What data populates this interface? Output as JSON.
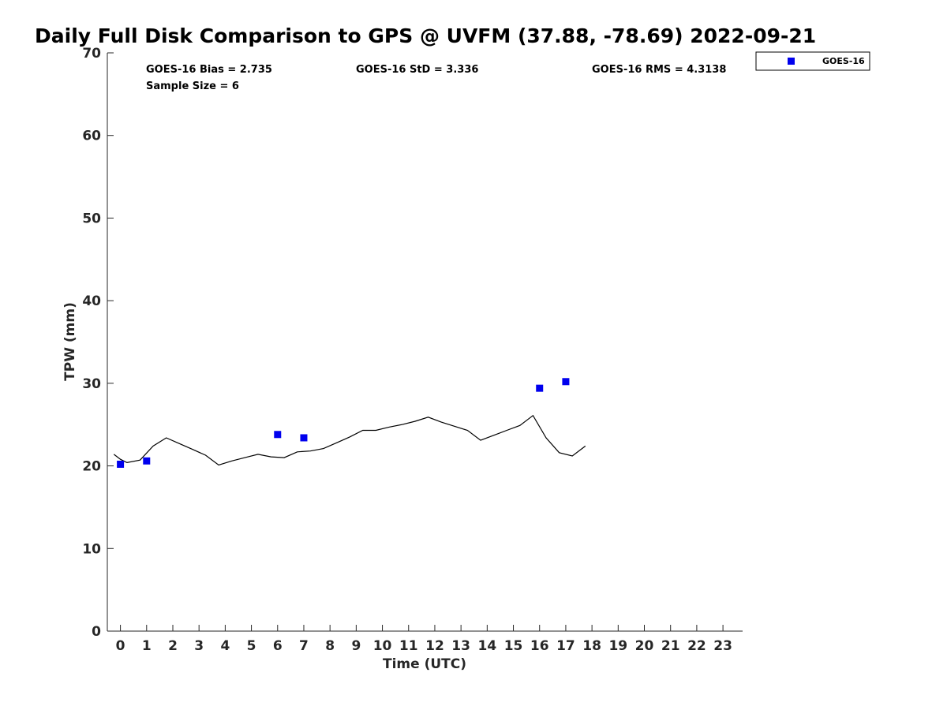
{
  "chart_data": {
    "type": "scatter",
    "title": "Daily Full Disk Comparison to GPS @ UVFM (37.88, -78.69) 2022-09-21",
    "xlabel": "Time (UTC)",
    "ylabel": "TPW (mm)",
    "xlim": [
      -0.5,
      23.75
    ],
    "ylim": [
      0,
      70
    ],
    "x_ticks": [
      "0",
      "1",
      "2",
      "3",
      "4",
      "5",
      "6",
      "7",
      "8",
      "9",
      "10",
      "11",
      "12",
      "13",
      "14",
      "15",
      "16",
      "17",
      "18",
      "19",
      "20",
      "21",
      "22",
      "23"
    ],
    "y_ticks": [
      "0",
      "10",
      "20",
      "30",
      "40",
      "50",
      "60",
      "70"
    ],
    "grid": false,
    "legend_position": "top-right",
    "stats": {
      "bias": "GOES-16 Bias = 2.735",
      "std": "GOES-16 StD = 3.336",
      "rms": "GOES-16 RMS = 4.3138",
      "sample": "Sample Size = 6"
    },
    "series": [
      {
        "name": "GOES-16",
        "type": "scatter",
        "color": "#0000ee",
        "marker": "square",
        "x": [
          0,
          1,
          6,
          7,
          16,
          17
        ],
        "y": [
          20.2,
          20.6,
          23.8,
          23.4,
          29.4,
          30.2
        ]
      },
      {
        "type": "line",
        "color": "#000000",
        "x": [
          -0.25,
          0,
          0.25,
          0.75,
          1.25,
          1.75,
          2.25,
          2.75,
          3.25,
          3.75,
          4.25,
          4.75,
          5.25,
          5.75,
          6.25,
          6.75,
          7.25,
          7.75,
          8.25,
          8.75,
          9.25,
          9.75,
          10.25,
          10.75,
          11.25,
          11.75,
          12.25,
          12.75,
          13.25,
          13.75,
          14.25,
          14.75,
          15.25,
          15.75,
          16.25,
          16.75,
          17.25,
          17.75
        ],
        "y": [
          21.4,
          20.8,
          20.4,
          20.7,
          22.4,
          23.4,
          22.7,
          22.0,
          21.3,
          20.1,
          20.6,
          21.0,
          21.4,
          21.1,
          21.0,
          21.7,
          21.8,
          22.1,
          22.8,
          23.5,
          24.3,
          24.3,
          24.7,
          25.0,
          25.4,
          25.9,
          25.3,
          24.8,
          24.3,
          23.1,
          23.7,
          24.3,
          24.9,
          26.1,
          23.4,
          21.6,
          21.2,
          22.4
        ]
      }
    ]
  }
}
